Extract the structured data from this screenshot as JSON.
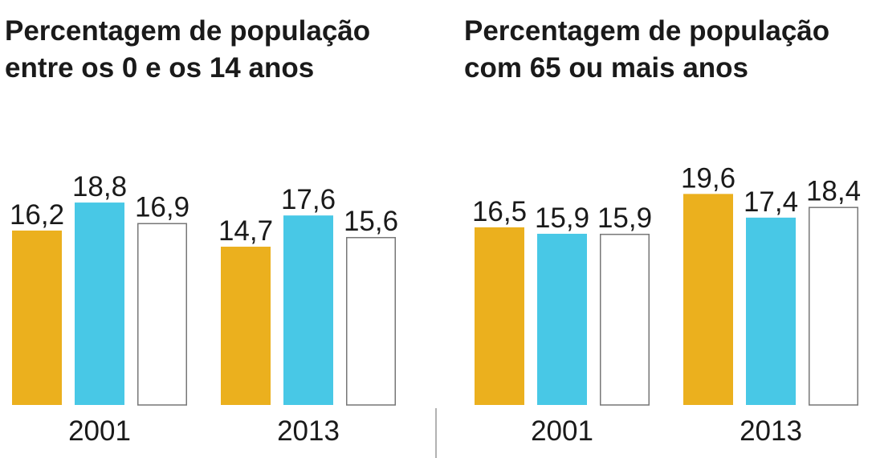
{
  "colors": {
    "series1": "#ebb01e",
    "series2": "#48c8e6",
    "series3_fill": "#ffffff",
    "series3_stroke": "#777777",
    "divider": "#999999",
    "text": "#1a1a1a"
  },
  "chart_data": [
    {
      "type": "bar",
      "title_lines": [
        "Percentagem de população",
        "entre os 0 e os 14 anos"
      ],
      "categories": [
        "2001",
        "2013"
      ],
      "series": [
        {
          "values": [
            16.2,
            14.7
          ]
        },
        {
          "values": [
            18.8,
            17.6
          ]
        },
        {
          "values": [
            16.9,
            15.6
          ]
        }
      ],
      "value_labels": [
        [
          "16,2",
          "18,8",
          "16,9"
        ],
        [
          "14,7",
          "17,6",
          "15,6"
        ]
      ],
      "xlabel": "",
      "ylabel": "",
      "grid": false
    },
    {
      "type": "bar",
      "title_lines": [
        "Percentagem de população",
        "com 65 ou mais anos"
      ],
      "categories": [
        "2001",
        "2013"
      ],
      "series": [
        {
          "values": [
            16.5,
            19.6
          ]
        },
        {
          "values": [
            15.9,
            17.4
          ]
        },
        {
          "values": [
            15.9,
            18.4
          ]
        }
      ],
      "value_labels": [
        [
          "16,5",
          "15,9",
          "15,9"
        ],
        [
          "19,6",
          "17,4",
          "18,4"
        ]
      ],
      "xlabel": "",
      "ylabel": "",
      "grid": false
    }
  ]
}
